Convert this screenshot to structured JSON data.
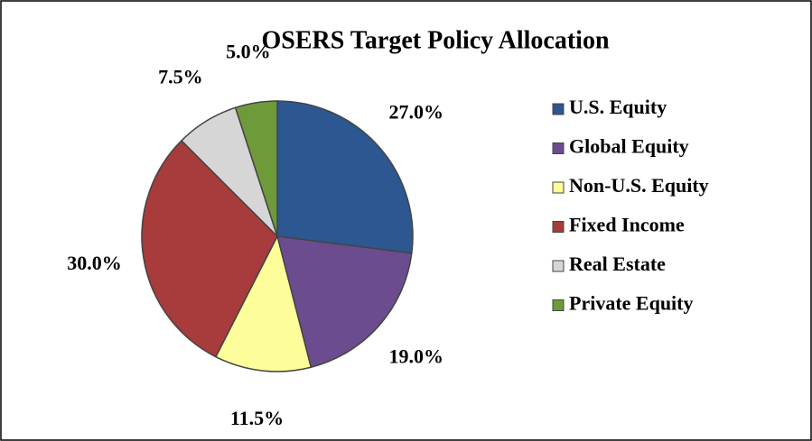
{
  "chart_data": {
    "type": "pie",
    "title": "OSERS Target Policy Allocation",
    "categories": [
      "U.S. Equity",
      "Global Equity",
      "Non-U.S. Equity",
      "Fixed Income",
      "Real Estate",
      "Private Equity"
    ],
    "values": [
      27,
      19,
      11.5,
      30,
      7.5,
      5
    ],
    "value_labels": [
      "27.0%",
      "19.0%",
      "11.5%",
      "30.0%",
      "7.5%",
      "5.0%"
    ],
    "colors": [
      "#2c5791",
      "#6b4c8e",
      "#fdfd9a",
      "#a83b3b",
      "#d6d6d6",
      "#6f9a3a"
    ],
    "legend": "right"
  }
}
